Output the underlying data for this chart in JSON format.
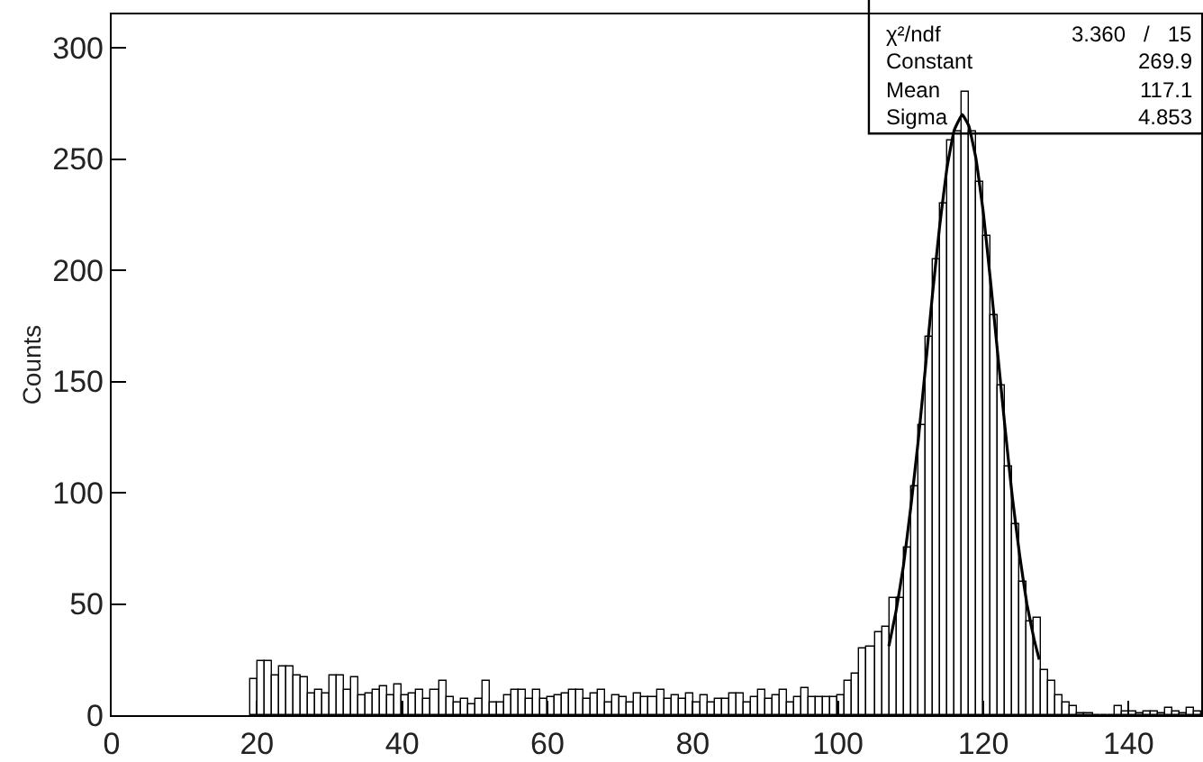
{
  "chart_data": {
    "type": "histogram",
    "ylabel": "Counts",
    "bins": [
      19,
      20,
      21,
      22,
      23,
      24,
      25,
      26,
      27,
      28,
      29,
      30,
      31,
      32,
      33,
      34,
      35,
      36,
      37,
      38,
      39,
      40,
      41,
      42,
      43,
      44,
      45,
      46,
      47,
      48,
      49,
      50,
      51,
      52,
      53,
      54,
      55,
      56,
      57,
      58,
      59,
      60,
      61,
      62,
      63,
      64,
      65,
      66,
      67,
      68,
      69,
      70,
      71,
      72,
      73,
      74,
      75,
      76,
      77,
      78,
      79,
      80,
      81,
      82,
      83,
      84,
      85,
      86,
      87,
      88,
      89,
      90,
      91,
      92,
      93,
      94,
      95,
      96,
      97,
      98,
      99,
      100,
      101,
      102,
      103,
      104,
      105,
      106,
      107,
      108,
      109,
      110,
      111,
      112,
      113,
      114,
      115,
      116,
      117,
      118,
      119,
      120,
      121,
      122,
      123,
      124,
      125,
      126,
      127,
      128,
      129,
      130,
      131,
      132,
      133,
      134,
      135,
      136,
      137,
      138,
      139,
      140,
      141,
      142,
      143,
      144,
      145,
      146,
      147,
      148,
      149,
      150
    ],
    "values": [
      16,
      24,
      24,
      18,
      22,
      22,
      18,
      17,
      10,
      11,
      10,
      18,
      18,
      11,
      17,
      9,
      10,
      11,
      13,
      9,
      14,
      9,
      10,
      11,
      7,
      11,
      15,
      8,
      6,
      7,
      5,
      7,
      15,
      6,
      6,
      9,
      11,
      11,
      7,
      11,
      7,
      8,
      9,
      10,
      11,
      11,
      7,
      10,
      11,
      6,
      9,
      8,
      6,
      10,
      8,
      8,
      11,
      7,
      9,
      7,
      10,
      6,
      9,
      6,
      7,
      7,
      10,
      10,
      6,
      8,
      11,
      7,
      9,
      11,
      6,
      8,
      12,
      8,
      8,
      8,
      8,
      9,
      15,
      19,
      30,
      31,
      37,
      40,
      53,
      53,
      75,
      103,
      130,
      170,
      205,
      230,
      258,
      262,
      280,
      262,
      240,
      215,
      180,
      148,
      112,
      86,
      60,
      42,
      44,
      20,
      15,
      9,
      6,
      4,
      1,
      1,
      0,
      0,
      0,
      4,
      2,
      2,
      1,
      2,
      2,
      1,
      3,
      2,
      1,
      3,
      2
    ],
    "color": "#000000",
    "series": [
      {
        "type": "line",
        "color": "#000000",
        "x": [
          107,
          108,
          109,
          110,
          111,
          112,
          113,
          114,
          115,
          116,
          117.1,
          118,
          119,
          120,
          121,
          122,
          123,
          124,
          125,
          126,
          127,
          127.7
        ],
        "values": [
          31,
          47,
          67,
          93,
          122,
          155,
          189,
          220,
          246,
          263,
          270,
          265,
          250,
          226,
          195,
          162,
          129,
          98,
          72,
          50,
          34,
          25
        ]
      }
    ],
    "xlim": [
      0,
      150
    ],
    "xticks": [
      0,
      20,
      40,
      60,
      80,
      100,
      120,
      140
    ],
    "ylim": [
      0,
      315
    ],
    "yticks": [
      0,
      50,
      100,
      150,
      200,
      250,
      300
    ],
    "grid": false,
    "annotations": [
      "χ²/ndf   3.360   /   15",
      "Constant   269.9",
      "Mean   117.1",
      "Sigma   4.853"
    ]
  }
}
